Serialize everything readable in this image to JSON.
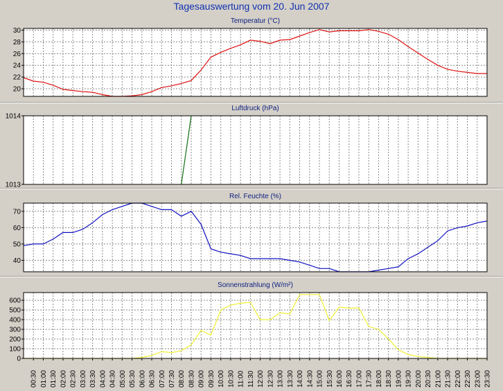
{
  "page": {
    "title": "Tagesauswertung vom 20. Jun 2007"
  },
  "colors": {
    "background": "#d4d0c8",
    "plot_bg": "#ffffff",
    "grid": "#888888",
    "temperature": "#e01010",
    "pressure": "#107010",
    "humidity": "#1010c0",
    "solar": "#f0f030"
  },
  "x_ticks": [
    "00:30",
    "01:00",
    "01:30",
    "02:00",
    "02:30",
    "03:00",
    "03:30",
    "04:00",
    "04:30",
    "05:00",
    "05:30",
    "06:00",
    "06:30",
    "07:00",
    "07:30",
    "08:00",
    "08:30",
    "09:00",
    "09:30",
    "10:00",
    "10:30",
    "11:00",
    "11:30",
    "12:00",
    "12:30",
    "13:00",
    "13:30",
    "14:00",
    "14:30",
    "15:00",
    "15:30",
    "16:00",
    "16:30",
    "17:00",
    "17:30",
    "18:00",
    "18:30",
    "19:00",
    "19:30",
    "20:00",
    "20:30",
    "21:00",
    "21:30",
    "22:00",
    "22:30",
    "23:00",
    "23:30"
  ],
  "chart_data": [
    {
      "type": "line",
      "title": "Temperatur (°C)",
      "color": "#e01010",
      "ylim": [
        18.7,
        30.3
      ],
      "yticks": [
        20,
        22,
        24,
        26,
        28,
        30
      ],
      "grid": true,
      "x": [
        "00:00",
        "00:30",
        "01:00",
        "01:30",
        "02:00",
        "02:30",
        "03:00",
        "03:30",
        "04:00",
        "04:30",
        "05:00",
        "05:30",
        "06:00",
        "06:30",
        "07:00",
        "07:30",
        "08:00",
        "08:30",
        "09:00",
        "09:30",
        "10:00",
        "10:30",
        "11:00",
        "11:30",
        "12:00",
        "12:30",
        "13:00",
        "13:30",
        "14:00",
        "14:30",
        "15:00",
        "15:30",
        "16:00",
        "16:30",
        "17:00",
        "17:30",
        "18:00",
        "18:30",
        "19:00",
        "19:30",
        "20:00",
        "20:30",
        "21:00",
        "21:30",
        "22:00",
        "22:30",
        "23:00",
        "23:30"
      ],
      "values": [
        21.9,
        21.3,
        21.1,
        20.6,
        19.9,
        19.7,
        19.5,
        19.4,
        19.0,
        18.7,
        18.7,
        18.8,
        19.0,
        19.5,
        20.2,
        20.5,
        20.9,
        21.4,
        23.2,
        25.4,
        26.2,
        26.9,
        27.5,
        28.3,
        28.1,
        27.7,
        28.3,
        28.4,
        29.0,
        29.6,
        30.1,
        29.7,
        29.9,
        29.9,
        29.9,
        30.1,
        29.8,
        29.3,
        28.4,
        27.2,
        26.1,
        25.0,
        24.0,
        23.3,
        23.0,
        22.8,
        22.6,
        22.6
      ]
    },
    {
      "type": "line",
      "title": "Luftdruck (hPa)",
      "color": "#107010",
      "ylim": [
        1013,
        1014
      ],
      "yticks": [
        1013,
        1014
      ],
      "grid": true,
      "x": [
        "08:00",
        "08:30"
      ],
      "values": [
        1013.0,
        1014.0
      ]
    },
    {
      "type": "line",
      "title": "Rel. Feuchte (%)",
      "color": "#1010c0",
      "ylim": [
        33,
        75
      ],
      "yticks": [
        40,
        50,
        60,
        70
      ],
      "grid": true,
      "x": [
        "00:00",
        "00:30",
        "01:00",
        "01:30",
        "02:00",
        "02:30",
        "03:00",
        "03:30",
        "04:00",
        "04:30",
        "05:00",
        "05:30",
        "06:00",
        "06:30",
        "07:00",
        "07:30",
        "08:00",
        "08:30",
        "09:00",
        "09:30",
        "10:00",
        "10:30",
        "11:00",
        "11:30",
        "12:00",
        "12:30",
        "13:00",
        "13:30",
        "14:00",
        "14:30",
        "15:00",
        "15:30",
        "16:00",
        "16:30",
        "17:00",
        "17:30",
        "18:00",
        "18:30",
        "19:00",
        "19:30",
        "20:00",
        "20:30",
        "21:00",
        "21:30",
        "22:00",
        "22:30",
        "23:00",
        "23:30"
      ],
      "values": [
        49,
        50,
        50,
        53,
        57,
        57,
        59,
        63,
        68,
        71,
        73,
        75,
        75,
        73,
        71,
        71,
        67,
        70,
        62,
        47,
        45,
        44,
        43,
        41,
        41,
        41,
        41,
        40,
        39,
        37,
        35,
        35,
        33,
        33,
        33,
        33,
        34,
        35,
        36,
        41,
        44,
        48,
        52,
        58,
        60,
        61,
        63,
        64
      ]
    },
    {
      "type": "line",
      "title": "Sonnenstrahlung (W/m²)",
      "color": "#f0f030",
      "ylim": [
        0,
        680
      ],
      "yticks": [
        0,
        100,
        200,
        300,
        400,
        500,
        600
      ],
      "grid": true,
      "x": [
        "00:00",
        "00:30",
        "01:00",
        "01:30",
        "02:00",
        "02:30",
        "03:00",
        "03:30",
        "04:00",
        "04:30",
        "05:00",
        "05:30",
        "06:00",
        "06:30",
        "07:00",
        "07:30",
        "08:00",
        "08:30",
        "09:00",
        "09:30",
        "10:00",
        "10:30",
        "11:00",
        "11:30",
        "12:00",
        "12:30",
        "13:00",
        "13:30",
        "14:00",
        "14:30",
        "15:00",
        "15:30",
        "16:00",
        "16:30",
        "17:00",
        "17:30",
        "18:00",
        "18:30",
        "19:00",
        "19:30",
        "20:00",
        "20:30",
        "21:00",
        "21:30",
        "22:00",
        "22:30",
        "23:00",
        "23:30"
      ],
      "values": [
        0,
        0,
        0,
        0,
        0,
        0,
        0,
        0,
        0,
        0,
        0,
        0,
        10,
        30,
        70,
        60,
        80,
        140,
        290,
        240,
        500,
        550,
        570,
        580,
        400,
        400,
        470,
        460,
        660,
        660,
        660,
        390,
        530,
        520,
        520,
        330,
        300,
        200,
        90,
        40,
        20,
        10,
        0,
        0,
        0,
        0,
        0,
        0
      ]
    }
  ]
}
